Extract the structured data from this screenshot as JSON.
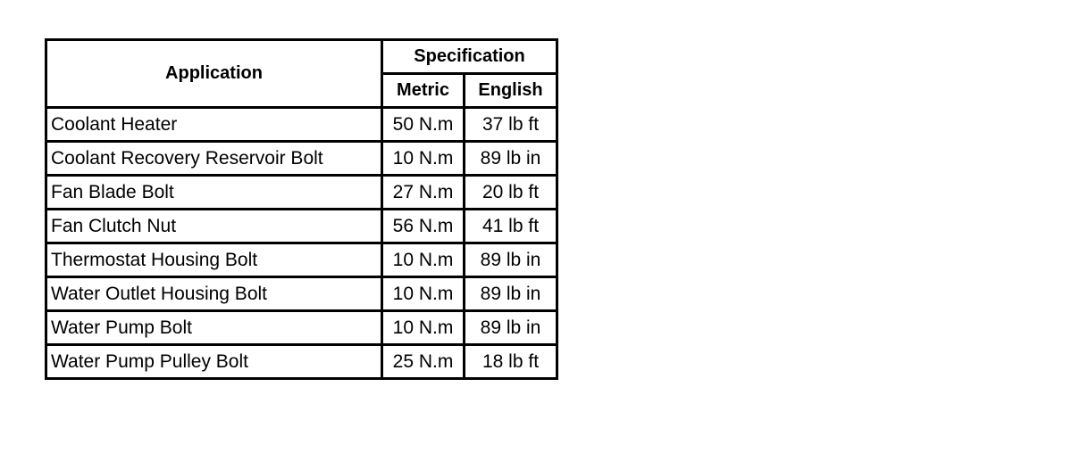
{
  "table": {
    "header": {
      "application": "Application",
      "specification": "Specification",
      "metric": "Metric",
      "english": "English"
    },
    "rows": [
      [
        "Coolant Heater",
        "50 N.m",
        "37 lb ft"
      ],
      [
        "Coolant Recovery Reservoir Bolt",
        "10 N.m",
        "89 lb in"
      ],
      [
        "Fan Blade Bolt",
        "27 N.m",
        "20 lb ft"
      ],
      [
        "Fan Clutch Nut",
        "56 N.m",
        "41 lb ft"
      ],
      [
        "Thermostat Housing Bolt",
        "10 N.m",
        "89 lb in"
      ],
      [
        "Water Outlet Housing Bolt",
        "10 N.m",
        "89 lb in"
      ],
      [
        "Water Pump Bolt",
        "10 N.m",
        "89 lb in"
      ],
      [
        "Water Pump Pulley Bolt",
        "25 N.m",
        "18 lb ft"
      ]
    ]
  }
}
